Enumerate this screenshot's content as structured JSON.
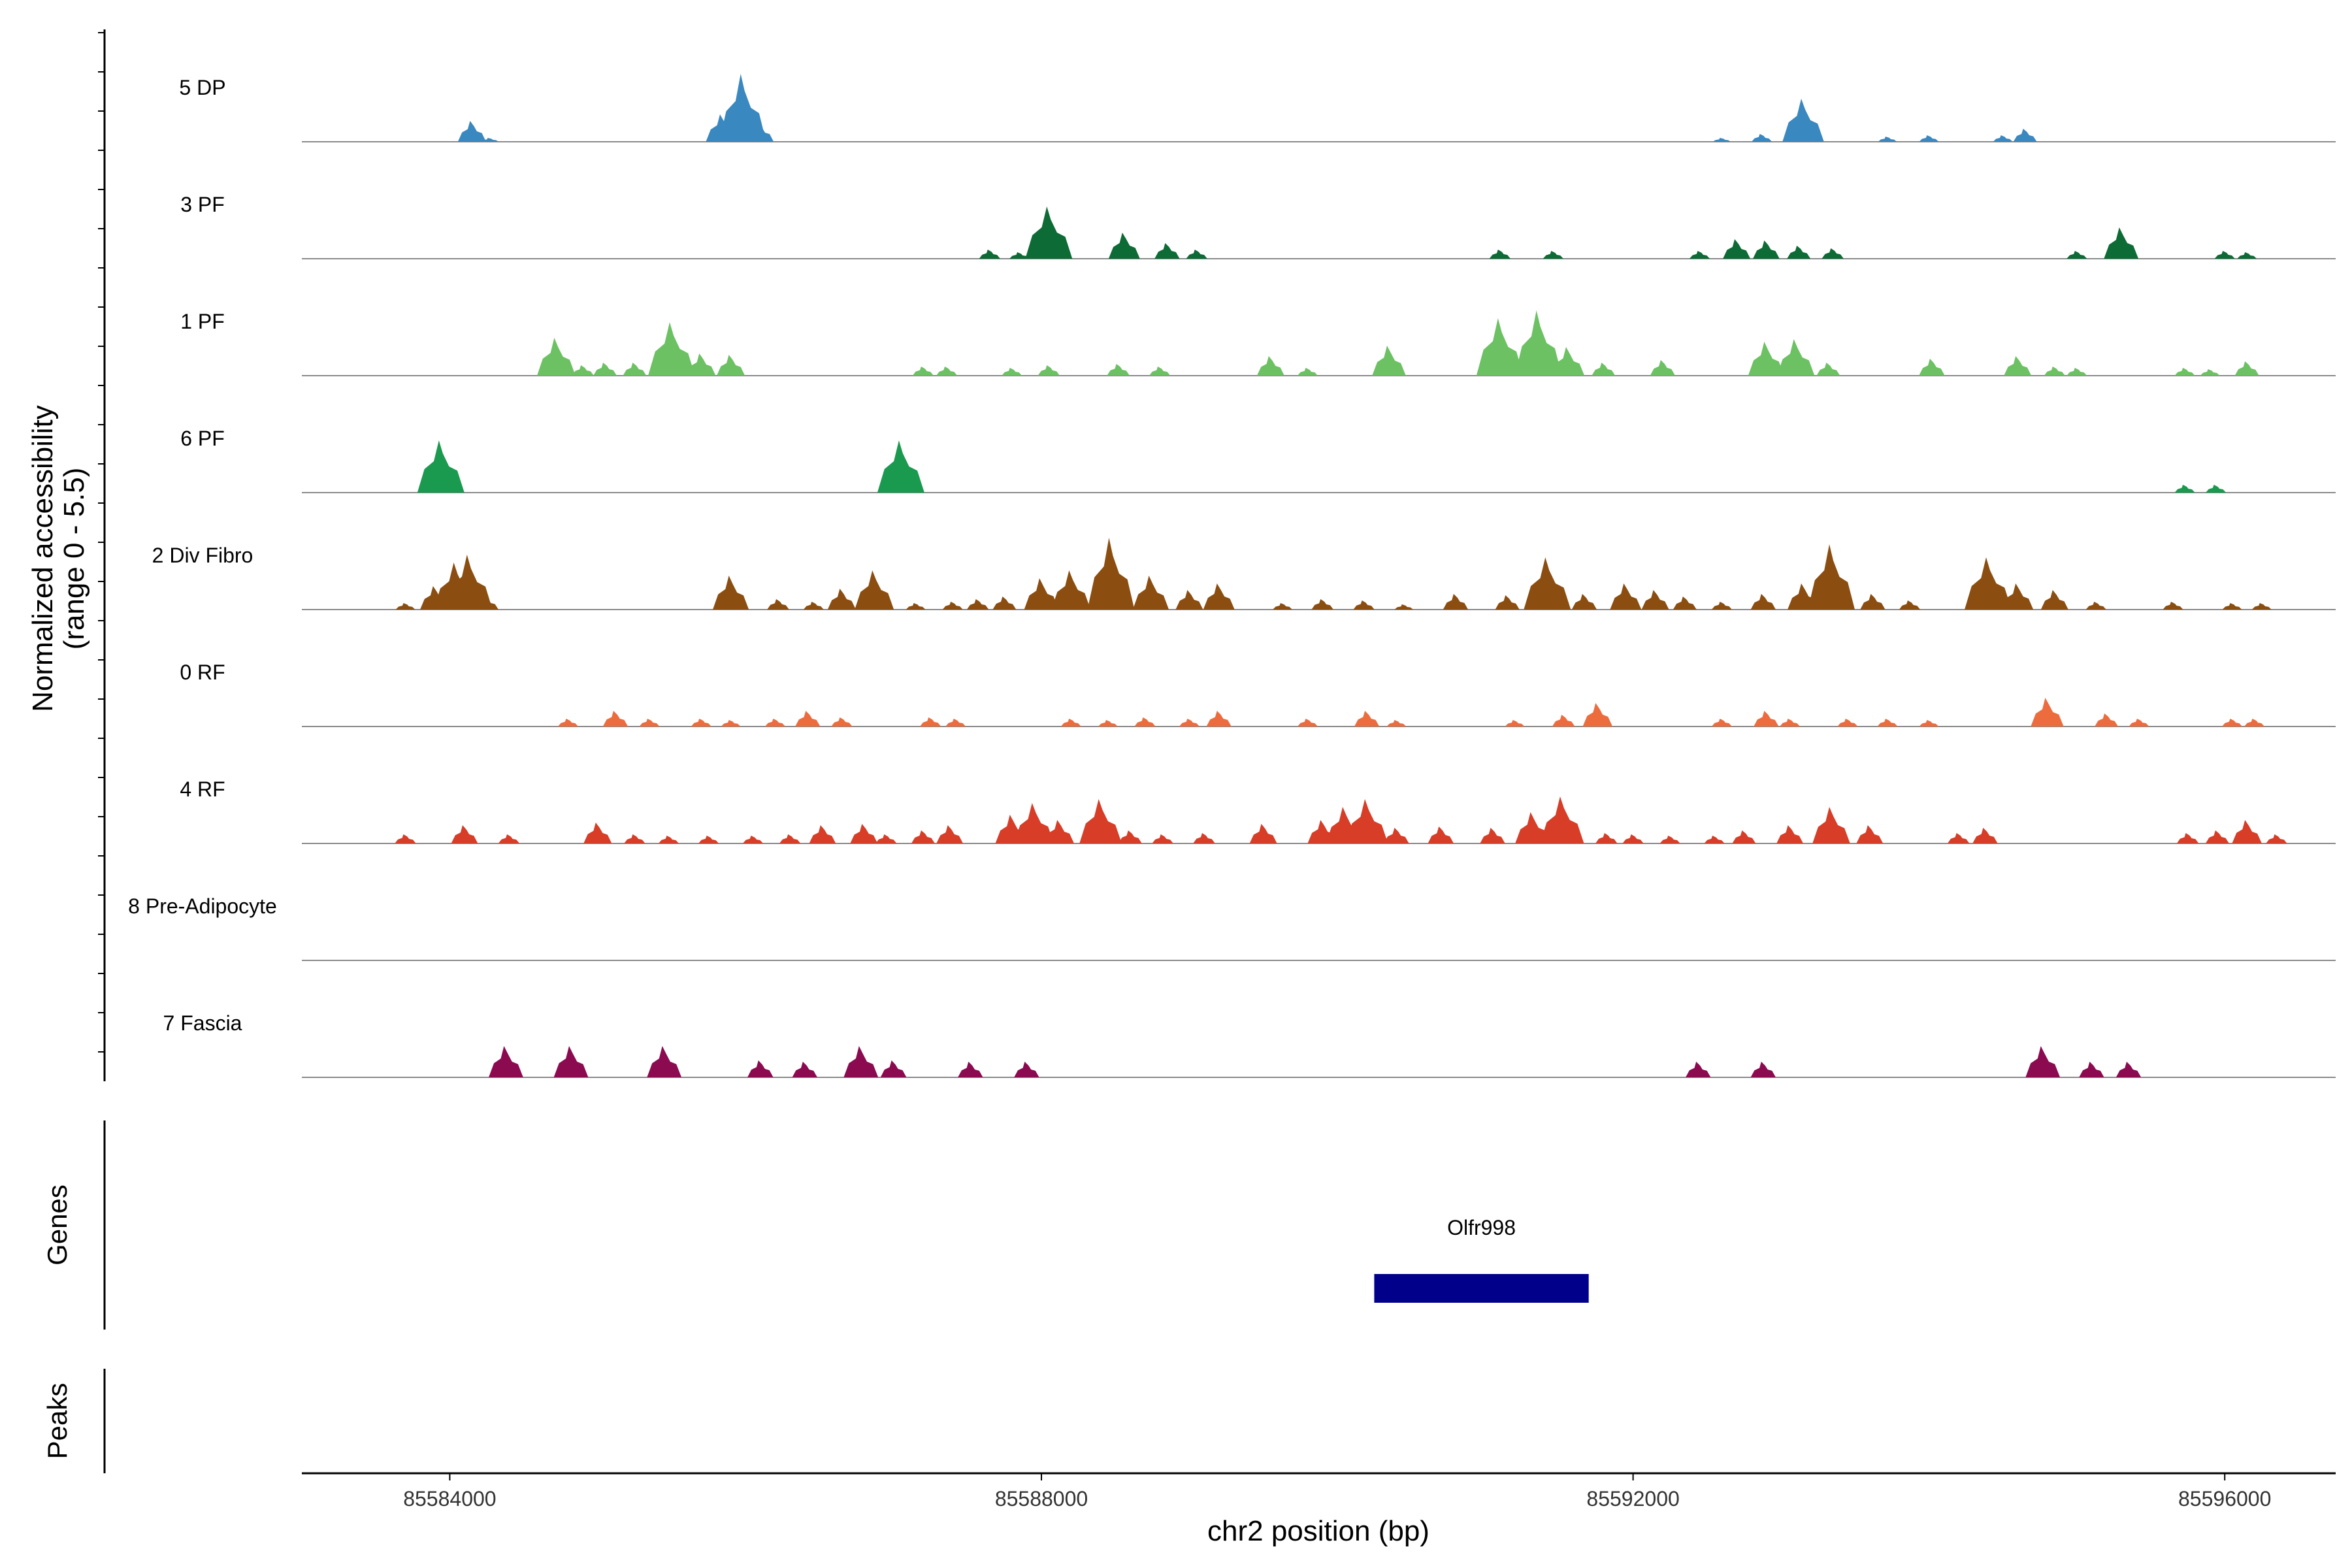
{
  "chart_data": {
    "type": "area",
    "title": "",
    "ylabel": [
      "Normalized accessibility",
      "(range 0 - 5.5)"
    ],
    "ylim": [
      0,
      5.5
    ],
    "xlabel": "chr2 position (bp)",
    "xlim": [
      85583000,
      85596750
    ],
    "x_ticks": [
      85584000,
      85588000,
      85592000,
      85596000
    ],
    "x_tick_labels": [
      "85584000",
      "85588000",
      "85592000",
      "85596000"
    ],
    "panel_titles": {
      "genes": "Genes",
      "peaks": "Peaks"
    },
    "tracks": [
      {
        "name": "5 DP",
        "color": "#3a88c0",
        "peaks": [
          [
            85584150,
            1.6
          ],
          [
            85584270,
            0.3
          ],
          [
            85585840,
            2.1
          ],
          [
            85585980,
            5.2
          ],
          [
            85586100,
            1.4
          ],
          [
            85592600,
            0.3
          ],
          [
            85592870,
            0.6
          ],
          [
            85593150,
            3.3
          ],
          [
            85593720,
            0.4
          ],
          [
            85594000,
            0.5
          ],
          [
            85594500,
            0.5
          ],
          [
            85594650,
            1.0
          ]
        ]
      },
      {
        "name": "3 PF",
        "color": "#0d6b35",
        "peaks": [
          [
            85587650,
            0.7
          ],
          [
            85587850,
            0.5
          ],
          [
            85588050,
            4.0
          ],
          [
            85588560,
            2.0
          ],
          [
            85588850,
            1.2
          ],
          [
            85589050,
            0.7
          ],
          [
            85591100,
            0.7
          ],
          [
            85591460,
            0.6
          ],
          [
            85592450,
            0.6
          ],
          [
            85592700,
            1.5
          ],
          [
            85592900,
            1.4
          ],
          [
            85593120,
            1.0
          ],
          [
            85593350,
            0.8
          ],
          [
            85595000,
            0.6
          ],
          [
            85595300,
            2.4
          ],
          [
            85596000,
            0.6
          ],
          [
            85596150,
            0.5
          ]
        ]
      },
      {
        "name": "1 PF",
        "color": "#6cc163",
        "peaks": [
          [
            85584720,
            2.9
          ],
          [
            85584900,
            0.8
          ],
          [
            85585050,
            1.0
          ],
          [
            85585250,
            1.0
          ],
          [
            85585500,
            4.1
          ],
          [
            85585700,
            1.7
          ],
          [
            85585900,
            1.6
          ],
          [
            85587200,
            0.7
          ],
          [
            85587360,
            0.7
          ],
          [
            85587800,
            0.6
          ],
          [
            85588050,
            0.8
          ],
          [
            85588520,
            0.9
          ],
          [
            85588800,
            0.7
          ],
          [
            85589550,
            1.5
          ],
          [
            85589800,
            0.6
          ],
          [
            85590350,
            2.3
          ],
          [
            85591100,
            4.4
          ],
          [
            85591360,
            5.0
          ],
          [
            85591560,
            2.2
          ],
          [
            85591800,
            1.0
          ],
          [
            85592200,
            1.2
          ],
          [
            85592900,
            2.6
          ],
          [
            85593100,
            2.8
          ],
          [
            85593320,
            1.0
          ],
          [
            85594020,
            1.3
          ],
          [
            85594600,
            1.5
          ],
          [
            85594850,
            0.7
          ],
          [
            85595000,
            0.6
          ],
          [
            85595730,
            0.6
          ],
          [
            85595900,
            0.5
          ],
          [
            85596150,
            1.1
          ]
        ]
      },
      {
        "name": "6 PF",
        "color": "#1a9a4f",
        "peaks": [
          [
            85583940,
            4.0
          ],
          [
            85587050,
            4.0
          ],
          [
            85595730,
            0.6
          ],
          [
            85595940,
            0.6
          ]
        ]
      },
      {
        "name": "2 Div Fibro",
        "color": "#8b4e10",
        "peaks": [
          [
            85583700,
            0.5
          ],
          [
            85583900,
            1.8
          ],
          [
            85584040,
            3.6
          ],
          [
            85584130,
            4.2
          ],
          [
            85584250,
            1.0
          ],
          [
            85585900,
            2.6
          ],
          [
            85586220,
            0.8
          ],
          [
            85586460,
            0.6
          ],
          [
            85586650,
            1.6
          ],
          [
            85586870,
            3.0
          ],
          [
            85587150,
            0.5
          ],
          [
            85587400,
            0.6
          ],
          [
            85587570,
            0.8
          ],
          [
            85587750,
            1.0
          ],
          [
            85588000,
            2.4
          ],
          [
            85588200,
            3.0
          ],
          [
            85588470,
            5.5
          ],
          [
            85588740,
            2.6
          ],
          [
            85589000,
            1.5
          ],
          [
            85589200,
            2.0
          ],
          [
            85589630,
            0.5
          ],
          [
            85589900,
            0.8
          ],
          [
            85590180,
            0.7
          ],
          [
            85590450,
            0.4
          ],
          [
            85590800,
            1.2
          ],
          [
            85591150,
            1.1
          ],
          [
            85591420,
            4.0
          ],
          [
            85591670,
            1.2
          ],
          [
            85591950,
            2.0
          ],
          [
            85592150,
            1.5
          ],
          [
            85592350,
            1.0
          ],
          [
            85592600,
            0.6
          ],
          [
            85592880,
            1.2
          ],
          [
            85593150,
            2.0
          ],
          [
            85593340,
            5.0
          ],
          [
            85593620,
            1.2
          ],
          [
            85593870,
            0.7
          ],
          [
            85594400,
            4.0
          ],
          [
            85594600,
            2.0
          ],
          [
            85594850,
            1.5
          ],
          [
            85595130,
            0.6
          ],
          [
            85595650,
            0.6
          ],
          [
            85596050,
            0.5
          ],
          [
            85596250,
            0.5
          ]
        ]
      },
      {
        "name": "0 RF",
        "color": "#ed6c3e",
        "peaks": [
          [
            85584800,
            0.6
          ],
          [
            85585120,
            1.2
          ],
          [
            85585350,
            0.6
          ],
          [
            85585700,
            0.6
          ],
          [
            85585900,
            0.5
          ],
          [
            85586200,
            0.6
          ],
          [
            85586420,
            1.2
          ],
          [
            85586650,
            0.7
          ],
          [
            85587250,
            0.7
          ],
          [
            85587420,
            0.6
          ],
          [
            85588200,
            0.6
          ],
          [
            85588450,
            0.5
          ],
          [
            85588700,
            0.7
          ],
          [
            85589000,
            0.6
          ],
          [
            85589200,
            1.2
          ],
          [
            85589800,
            0.6
          ],
          [
            85590200,
            1.2
          ],
          [
            85590400,
            0.5
          ],
          [
            85591200,
            0.5
          ],
          [
            85591530,
            0.9
          ],
          [
            85591760,
            1.8
          ],
          [
            85592600,
            0.6
          ],
          [
            85592900,
            1.2
          ],
          [
            85593060,
            0.6
          ],
          [
            85593450,
            0.6
          ],
          [
            85593720,
            0.6
          ],
          [
            85594000,
            0.5
          ],
          [
            85594800,
            2.2
          ],
          [
            85595200,
            1.0
          ],
          [
            85595420,
            0.6
          ],
          [
            85596050,
            0.6
          ],
          [
            85596200,
            0.6
          ]
        ]
      },
      {
        "name": "4 RF",
        "color": "#d73d27",
        "peaks": [
          [
            85583700,
            0.7
          ],
          [
            85584100,
            1.4
          ],
          [
            85584400,
            0.7
          ],
          [
            85585000,
            1.6
          ],
          [
            85585250,
            0.7
          ],
          [
            85585480,
            0.6
          ],
          [
            85585750,
            0.6
          ],
          [
            85586050,
            0.6
          ],
          [
            85586300,
            0.7
          ],
          [
            85586520,
            1.4
          ],
          [
            85586800,
            1.5
          ],
          [
            85586950,
            0.7
          ],
          [
            85587200,
            1.0
          ],
          [
            85587380,
            1.4
          ],
          [
            85587800,
            2.2
          ],
          [
            85587950,
            3.1
          ],
          [
            85588120,
            1.8
          ],
          [
            85588400,
            3.4
          ],
          [
            85588600,
            1.0
          ],
          [
            85588820,
            0.7
          ],
          [
            85589100,
            0.8
          ],
          [
            85589500,
            1.5
          ],
          [
            85589900,
            1.8
          ],
          [
            85590050,
            2.8
          ],
          [
            85590200,
            3.4
          ],
          [
            85590400,
            1.2
          ],
          [
            85590700,
            1.3
          ],
          [
            85591050,
            1.2
          ],
          [
            85591320,
            2.4
          ],
          [
            85591520,
            3.6
          ],
          [
            85591820,
            0.8
          ],
          [
            85592000,
            0.7
          ],
          [
            85592250,
            0.6
          ],
          [
            85592550,
            0.6
          ],
          [
            85592750,
            1.0
          ],
          [
            85593060,
            1.4
          ],
          [
            85593340,
            2.8
          ],
          [
            85593600,
            1.4
          ],
          [
            85594200,
            0.8
          ],
          [
            85594380,
            1.2
          ],
          [
            85595750,
            0.8
          ],
          [
            85595950,
            1.0
          ],
          [
            85596150,
            1.8
          ],
          [
            85596350,
            0.7
          ]
        ]
      },
      {
        "name": "8 Pre-Adipocyte",
        "color": "#888888",
        "peaks": []
      },
      {
        "name": "7 Fascia",
        "color": "#8b0a50",
        "peaks": [
          [
            85584380,
            2.4
          ],
          [
            85584820,
            2.4
          ],
          [
            85585450,
            2.4
          ],
          [
            85586100,
            1.3
          ],
          [
            85586400,
            1.2
          ],
          [
            85586780,
            2.4
          ],
          [
            85587000,
            1.3
          ],
          [
            85587520,
            1.2
          ],
          [
            85587900,
            1.2
          ],
          [
            85592440,
            1.2
          ],
          [
            85592880,
            1.2
          ],
          [
            85594770,
            2.4
          ],
          [
            85595100,
            1.2
          ],
          [
            85595350,
            1.2
          ]
        ]
      }
    ],
    "genes": [
      {
        "name": "Olfr998",
        "start": 85590250,
        "end": 85591700,
        "color": "#00008b"
      }
    ],
    "peaks_track": []
  }
}
